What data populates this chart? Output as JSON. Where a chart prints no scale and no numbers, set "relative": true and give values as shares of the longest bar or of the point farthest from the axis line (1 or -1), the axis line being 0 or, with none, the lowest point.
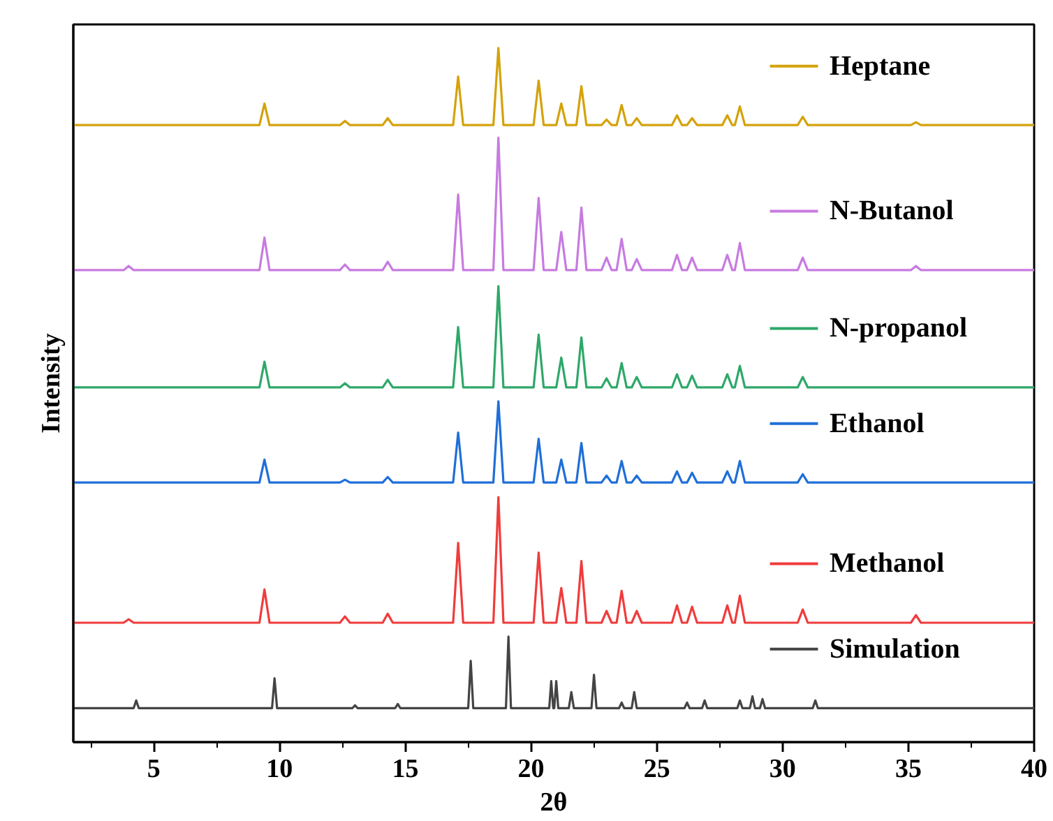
{
  "chart_data": {
    "type": "line",
    "relative": true,
    "xlabel": "2θ",
    "ylabel": "Intensity",
    "xlim": [
      1.8,
      40
    ],
    "xticks": [
      5,
      10,
      15,
      20,
      25,
      30,
      35,
      40
    ],
    "grid": false,
    "legend": "right",
    "marker": "none",
    "line_style": "solid",
    "series": [
      {
        "name": "Heptane",
        "color": "#d4a20a",
        "x": [
          1.8,
          9.2,
          9.4,
          9.6,
          12.4,
          12.6,
          12.8,
          14.1,
          14.3,
          14.5,
          16.9,
          17.1,
          17.3,
          18.5,
          18.7,
          18.9,
          20.1,
          20.3,
          20.5,
          21.0,
          21.2,
          21.4,
          21.8,
          22.0,
          22.2,
          22.8,
          23.0,
          23.2,
          23.4,
          23.6,
          23.8,
          24.0,
          24.2,
          24.4,
          25.6,
          25.8,
          26.0,
          26.2,
          26.4,
          26.6,
          27.6,
          27.8,
          28.0,
          28.1,
          28.3,
          28.5,
          30.6,
          30.8,
          31.0,
          35.1,
          35.3,
          35.5,
          40
        ],
        "values": [
          0.889,
          0.889,
          0.92,
          0.889,
          0.889,
          0.895,
          0.889,
          0.889,
          0.899,
          0.889,
          0.889,
          0.959,
          0.889,
          0.889,
          1.0,
          0.889,
          0.889,
          0.953,
          0.889,
          0.889,
          0.92,
          0.889,
          0.889,
          0.945,
          0.889,
          0.889,
          0.897,
          0.889,
          0.889,
          0.918,
          0.889,
          0.889,
          0.899,
          0.889,
          0.889,
          0.903,
          0.889,
          0.889,
          0.899,
          0.889,
          0.889,
          0.903,
          0.889,
          0.889,
          0.916,
          0.889,
          0.889,
          0.901,
          0.889,
          0.889,
          0.893,
          0.889,
          0.889
        ]
      },
      {
        "name": "N-Butanol",
        "color": "#c77be0",
        "x": [
          1.8,
          3.8,
          4.0,
          4.2,
          9.2,
          9.4,
          9.6,
          12.4,
          12.6,
          12.8,
          14.1,
          14.3,
          14.5,
          16.9,
          17.1,
          17.3,
          18.5,
          18.7,
          18.9,
          20.1,
          20.3,
          20.5,
          21.0,
          21.2,
          21.4,
          21.8,
          22.0,
          22.2,
          22.8,
          23.0,
          23.2,
          23.4,
          23.6,
          23.8,
          24.0,
          24.2,
          24.4,
          25.6,
          25.8,
          26.0,
          26.2,
          26.4,
          26.6,
          27.6,
          27.8,
          28.0,
          28.1,
          28.3,
          28.5,
          30.6,
          30.8,
          31.0,
          35.1,
          35.3,
          35.5,
          40
        ],
        "values": [
          0.68,
          0.68,
          0.686,
          0.68,
          0.68,
          0.727,
          0.68,
          0.68,
          0.688,
          0.68,
          0.68,
          0.692,
          0.68,
          0.68,
          0.789,
          0.68,
          0.68,
          0.871,
          0.68,
          0.68,
          0.784,
          0.68,
          0.68,
          0.735,
          0.68,
          0.68,
          0.77,
          0.68,
          0.68,
          0.698,
          0.68,
          0.68,
          0.725,
          0.68,
          0.68,
          0.696,
          0.68,
          0.68,
          0.702,
          0.68,
          0.68,
          0.698,
          0.68,
          0.68,
          0.702,
          0.68,
          0.68,
          0.719,
          0.68,
          0.68,
          0.698,
          0.68,
          0.68,
          0.686,
          0.68,
          0.68
        ]
      },
      {
        "name": "N-propanol",
        "color": "#2ea869",
        "x": [
          1.8,
          9.2,
          9.4,
          9.6,
          12.4,
          12.6,
          12.8,
          14.1,
          14.3,
          14.5,
          16.9,
          17.1,
          17.3,
          18.5,
          18.7,
          18.9,
          20.1,
          20.3,
          20.5,
          21.0,
          21.2,
          21.4,
          21.8,
          22.0,
          22.2,
          22.8,
          23.0,
          23.2,
          23.4,
          23.6,
          23.8,
          24.0,
          24.2,
          24.4,
          25.6,
          25.8,
          26.0,
          26.2,
          26.4,
          26.6,
          27.6,
          27.8,
          28.0,
          28.1,
          28.3,
          28.5,
          30.6,
          30.8,
          31.0,
          40
        ],
        "values": [
          0.511,
          0.511,
          0.548,
          0.511,
          0.511,
          0.517,
          0.511,
          0.511,
          0.522,
          0.511,
          0.511,
          0.598,
          0.511,
          0.511,
          0.657,
          0.511,
          0.511,
          0.587,
          0.511,
          0.511,
          0.554,
          0.511,
          0.511,
          0.583,
          0.511,
          0.511,
          0.524,
          0.511,
          0.511,
          0.546,
          0.511,
          0.511,
          0.526,
          0.511,
          0.511,
          0.53,
          0.511,
          0.511,
          0.528,
          0.511,
          0.511,
          0.53,
          0.511,
          0.511,
          0.542,
          0.511,
          0.511,
          0.526,
          0.511,
          0.511
        ]
      },
      {
        "name": "Ethanol",
        "color": "#1f6fd8",
        "x": [
          1.8,
          9.2,
          9.4,
          9.6,
          12.4,
          12.6,
          12.8,
          14.1,
          14.3,
          14.5,
          16.9,
          17.1,
          17.3,
          18.5,
          18.7,
          18.9,
          20.1,
          20.3,
          20.5,
          21.0,
          21.2,
          21.4,
          21.8,
          22.0,
          22.2,
          22.8,
          23.0,
          23.2,
          23.4,
          23.6,
          23.8,
          24.0,
          24.2,
          24.4,
          25.6,
          25.8,
          26.0,
          26.2,
          26.4,
          26.6,
          27.6,
          27.8,
          28.0,
          28.1,
          28.3,
          28.5,
          30.6,
          30.8,
          31.0,
          40
        ],
        "values": [
          0.374,
          0.374,
          0.407,
          0.374,
          0.374,
          0.378,
          0.374,
          0.374,
          0.382,
          0.374,
          0.374,
          0.446,
          0.374,
          0.374,
          0.491,
          0.374,
          0.374,
          0.437,
          0.374,
          0.374,
          0.407,
          0.374,
          0.374,
          0.431,
          0.374,
          0.374,
          0.384,
          0.374,
          0.374,
          0.405,
          0.374,
          0.374,
          0.384,
          0.374,
          0.374,
          0.39,
          0.374,
          0.374,
          0.388,
          0.374,
          0.374,
          0.39,
          0.374,
          0.374,
          0.405,
          0.374,
          0.374,
          0.386,
          0.374,
          0.374
        ]
      },
      {
        "name": "Methanol",
        "color": "#f03c3c",
        "x": [
          1.8,
          3.8,
          4.0,
          4.2,
          9.2,
          9.4,
          9.6,
          12.4,
          12.6,
          12.8,
          14.1,
          14.3,
          14.5,
          16.9,
          17.1,
          17.3,
          18.5,
          18.7,
          18.9,
          20.1,
          20.3,
          20.5,
          21.0,
          21.2,
          21.4,
          21.8,
          22.0,
          22.2,
          22.8,
          23.0,
          23.2,
          23.4,
          23.6,
          23.8,
          24.0,
          24.2,
          24.4,
          25.6,
          25.8,
          26.0,
          26.2,
          26.4,
          26.6,
          27.6,
          27.8,
          28.0,
          28.1,
          28.3,
          28.5,
          30.6,
          30.8,
          31.0,
          35.1,
          35.3,
          35.5,
          40
        ],
        "values": [
          0.172,
          0.172,
          0.177,
          0.172,
          0.172,
          0.22,
          0.172,
          0.172,
          0.181,
          0.172,
          0.172,
          0.185,
          0.172,
          0.172,
          0.287,
          0.172,
          0.172,
          0.353,
          0.172,
          0.172,
          0.273,
          0.172,
          0.172,
          0.222,
          0.172,
          0.172,
          0.261,
          0.172,
          0.172,
          0.189,
          0.172,
          0.172,
          0.218,
          0.172,
          0.172,
          0.189,
          0.172,
          0.172,
          0.197,
          0.172,
          0.172,
          0.195,
          0.172,
          0.172,
          0.197,
          0.172,
          0.172,
          0.211,
          0.172,
          0.172,
          0.191,
          0.172,
          0.172,
          0.183,
          0.172,
          0.172
        ]
      },
      {
        "name": "Simulation",
        "color": "#444444",
        "x": [
          1.8,
          4.2,
          4.3,
          4.4,
          9.7,
          9.8,
          9.9,
          12.9,
          13.0,
          13.1,
          14.6,
          14.7,
          14.8,
          17.5,
          17.6,
          17.7,
          19.0,
          19.1,
          19.2,
          20.72,
          20.8,
          20.88,
          20.92,
          21.0,
          21.08,
          21.5,
          21.6,
          21.7,
          22.4,
          22.5,
          22.6,
          23.5,
          23.6,
          23.7,
          24.0,
          24.1,
          24.2,
          26.1,
          26.2,
          26.3,
          26.8,
          26.9,
          27.0,
          28.2,
          28.3,
          28.4,
          28.7,
          28.8,
          28.9,
          29.1,
          29.2,
          29.3,
          31.2,
          31.3,
          31.4,
          40
        ],
        "values": [
          0.049,
          0.049,
          0.06,
          0.049,
          0.049,
          0.092,
          0.049,
          0.049,
          0.053,
          0.049,
          0.049,
          0.055,
          0.049,
          0.049,
          0.117,
          0.049,
          0.049,
          0.152,
          0.049,
          0.049,
          0.088,
          0.049,
          0.049,
          0.088,
          0.049,
          0.049,
          0.072,
          0.049,
          0.049,
          0.097,
          0.049,
          0.049,
          0.057,
          0.049,
          0.049,
          0.072,
          0.049,
          0.049,
          0.057,
          0.049,
          0.049,
          0.06,
          0.049,
          0.049,
          0.06,
          0.049,
          0.049,
          0.066,
          0.049,
          0.049,
          0.062,
          0.049,
          0.049,
          0.06,
          0.049,
          0.049
        ]
      }
    ]
  }
}
